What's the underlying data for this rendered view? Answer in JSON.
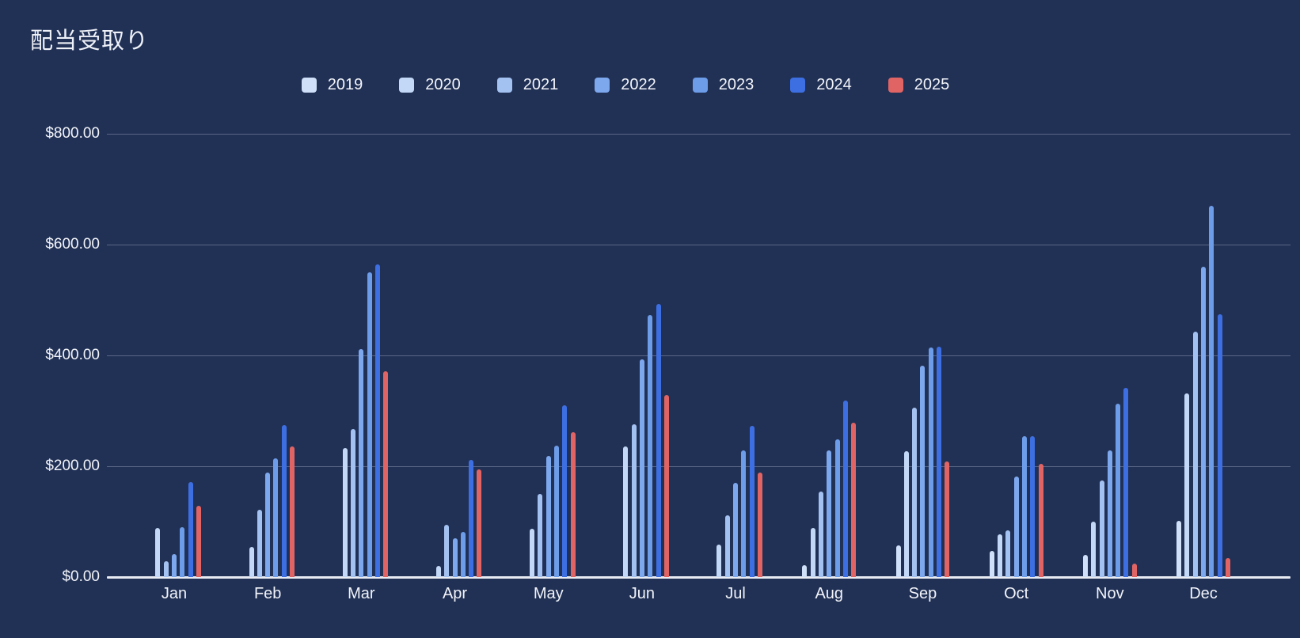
{
  "title": "配当受取り",
  "colors": {
    "background": "#213156",
    "gridline": "#5a6583",
    "baseline": "#e8ebf2",
    "text": "#f2f4f9"
  },
  "chart_data": {
    "type": "bar",
    "title": "配当受取り",
    "ylabel": "",
    "xlabel": "",
    "ylim": [
      0,
      800
    ],
    "grid": true,
    "legend_position": "top",
    "y_ticks": [
      {
        "label": "$800.00",
        "value": 800
      },
      {
        "label": "$600.00",
        "value": 600
      },
      {
        "label": "$400.00",
        "value": 400
      },
      {
        "label": "$200.00",
        "value": 200
      },
      {
        "label": "$0.00",
        "value": 0
      }
    ],
    "categories": [
      "Jan",
      "Feb",
      "Mar",
      "Apr",
      "May",
      "Jun",
      "Jul",
      "Aug",
      "Sep",
      "Oct",
      "Nov",
      "Dec"
    ],
    "series": [
      {
        "name": "2019",
        "color": "#cfe0f8",
        "values": [
          0,
          0,
          0,
          0,
          0,
          0,
          0,
          22,
          57,
          47,
          40,
          102
        ]
      },
      {
        "name": "2020",
        "color": "#c3d7f6",
        "values": [
          88,
          54,
          233,
          20,
          87,
          236,
          59,
          89,
          227,
          77,
          100,
          332
        ]
      },
      {
        "name": "2021",
        "color": "#a4c2f1",
        "values": [
          29,
          121,
          267,
          95,
          150,
          276,
          112,
          155,
          306,
          85,
          175,
          443
        ]
      },
      {
        "name": "2022",
        "color": "#7ea8ee",
        "values": [
          42,
          188,
          411,
          70,
          218,
          393,
          170,
          228,
          381,
          181,
          229,
          560
        ]
      },
      {
        "name": "2023",
        "color": "#6d9ce9",
        "values": [
          90,
          214,
          550,
          82,
          237,
          473,
          228,
          248,
          414,
          255,
          313,
          670
        ]
      },
      {
        "name": "2024",
        "color": "#3d6fe3",
        "values": [
          171,
          275,
          564,
          212,
          310,
          493,
          273,
          318,
          416,
          255,
          342,
          475
        ]
      },
      {
        "name": "2025",
        "color": "#e06464",
        "values": [
          129,
          236,
          371,
          195,
          262,
          328,
          188,
          279,
          209,
          204,
          24,
          34
        ]
      }
    ]
  }
}
